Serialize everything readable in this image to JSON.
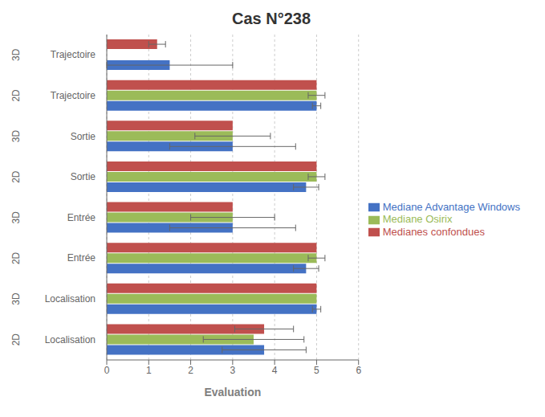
{
  "chart_data": {
    "type": "bar",
    "orientation": "horizontal",
    "title": "Cas N°238",
    "xlabel": "Evaluation",
    "categories": [
      [
        "2D",
        "Localisation"
      ],
      [
        "3D",
        "Localisation"
      ],
      [
        "2D",
        "Entrée"
      ],
      [
        "3D",
        "Entrée"
      ],
      [
        "2D",
        "Sortie"
      ],
      [
        "3D",
        "Sortie"
      ],
      [
        "2D",
        "Trajectoire"
      ],
      [
        "3D",
        "Trajectoire"
      ]
    ],
    "series": [
      {
        "name": "Medianes confondues",
        "color": "#c0504d",
        "values": [
          3.75,
          5.0,
          5.0,
          3.0,
          5.0,
          3.0,
          5.0,
          1.2
        ],
        "errors": [
          0.7,
          0.0,
          0.0,
          0.0,
          0.0,
          0.0,
          0.0,
          0.2
        ]
      },
      {
        "name": "Mediane Osirix",
        "color": "#9bbb59",
        "values": [
          3.5,
          5.0,
          5.0,
          3.0,
          5.0,
          3.0,
          5.0,
          null
        ],
        "errors": [
          1.2,
          0.0,
          0.2,
          1.0,
          0.2,
          0.9,
          0.2,
          null
        ]
      },
      {
        "name": "Mediane Advantage Windows",
        "color": "#4472c4",
        "values": [
          3.75,
          5.0,
          4.75,
          3.0,
          4.75,
          3.0,
          5.0,
          1.5
        ],
        "errors": [
          1.0,
          0.1,
          0.3,
          1.5,
          0.3,
          1.5,
          0.1,
          1.5
        ]
      }
    ],
    "xlim": [
      0,
      6
    ],
    "xticks": [
      0,
      1,
      2,
      3,
      4,
      5,
      6
    ],
    "grid": true,
    "legend": "right"
  }
}
